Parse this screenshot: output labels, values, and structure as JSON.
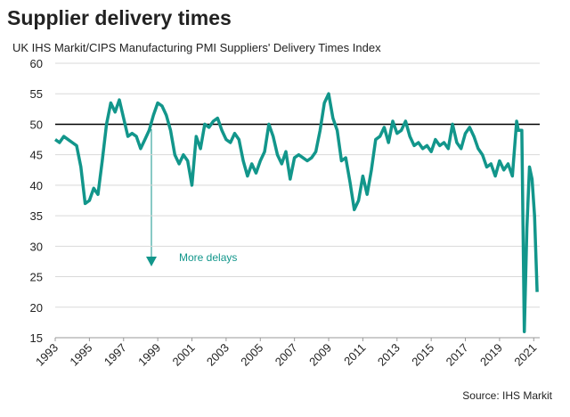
{
  "chart_data": {
    "type": "line",
    "title": "Supplier delivery times",
    "subtitle": "UK IHS Markit/CIPS Manufacturing PMI Suppliers' Delivery Times Index",
    "source": "Source: IHS Markit",
    "annotation": "More delays",
    "reference_line": 50,
    "xlim": [
      1993,
      2021.35
    ],
    "xticks": [
      1993,
      1995,
      1997,
      1999,
      2001,
      2003,
      2005,
      2007,
      2009,
      2011,
      2013,
      2015,
      2017,
      2019,
      2021
    ],
    "ylim": [
      15,
      60
    ],
    "yticks": [
      15,
      20,
      25,
      30,
      35,
      40,
      45,
      50,
      55,
      60
    ],
    "grid": true,
    "series": [
      {
        "name": "Suppliers' Delivery Times Index",
        "color": "#12968b",
        "x": [
          1993,
          1993.25,
          1993.5,
          1993.75,
          1994,
          1994.25,
          1994.5,
          1994.75,
          1995,
          1995.25,
          1995.5,
          1995.75,
          1996,
          1996.25,
          1996.5,
          1996.75,
          1997,
          1997.25,
          1997.5,
          1997.75,
          1998,
          1998.25,
          1998.5,
          1998.75,
          1999,
          1999.25,
          1999.5,
          1999.75,
          2000,
          2000.25,
          2000.5,
          2000.75,
          2001,
          2001.25,
          2001.5,
          2001.75,
          2002,
          2002.25,
          2002.5,
          2002.75,
          2003,
          2003.25,
          2003.5,
          2003.75,
          2004,
          2004.25,
          2004.5,
          2004.75,
          2005,
          2005.25,
          2005.5,
          2005.75,
          2006,
          2006.25,
          2006.5,
          2006.75,
          2007,
          2007.25,
          2007.5,
          2007.75,
          2008,
          2008.25,
          2008.5,
          2008.75,
          2009,
          2009.25,
          2009.5,
          2009.75,
          2010,
          2010.25,
          2010.5,
          2010.75,
          2011,
          2011.25,
          2011.5,
          2011.75,
          2012,
          2012.25,
          2012.5,
          2012.75,
          2013,
          2013.25,
          2013.5,
          2013.75,
          2014,
          2014.25,
          2014.5,
          2014.75,
          2015,
          2015.25,
          2015.5,
          2015.75,
          2016,
          2016.25,
          2016.5,
          2016.75,
          2017,
          2017.25,
          2017.5,
          2017.75,
          2018,
          2018.25,
          2018.5,
          2018.75,
          2019,
          2019.25,
          2019.5,
          2019.75,
          2020,
          2020.1,
          2020.3,
          2020.45,
          2020.6,
          2020.75,
          2020.9,
          2021.05,
          2021.2
        ],
        "values": [
          47.5,
          47,
          48,
          47.5,
          47,
          46.5,
          43,
          37,
          37.5,
          39.5,
          38.5,
          44,
          50,
          53.5,
          52,
          54,
          51,
          48,
          48.5,
          48,
          46,
          47.5,
          49,
          51.5,
          53.5,
          53,
          51.5,
          49,
          45,
          43.5,
          45,
          44,
          40,
          48,
          46,
          50,
          49.5,
          50.5,
          51,
          49,
          47.5,
          47,
          48.5,
          47.5,
          44,
          41.5,
          43.5,
          42,
          44,
          45.5,
          50,
          48,
          45,
          43.5,
          45.5,
          41,
          44.5,
          45,
          44.5,
          44,
          44.5,
          45.5,
          49,
          53.5,
          55,
          51,
          49,
          44,
          44.5,
          40.5,
          36,
          37.5,
          41.5,
          38.5,
          42.5,
          47.5,
          48,
          49.5,
          47,
          50.5,
          48.5,
          49,
          50.5,
          48,
          46.5,
          47,
          46,
          46.5,
          45.5,
          47.5,
          46.5,
          47,
          46,
          50,
          47,
          46,
          48.5,
          49.5,
          48,
          46,
          45,
          43,
          43.5,
          41.5,
          44,
          42.5,
          43.5,
          41.5,
          50.5,
          49,
          49,
          16,
          33,
          43,
          41,
          35,
          22.5
        ]
      }
    ]
  }
}
